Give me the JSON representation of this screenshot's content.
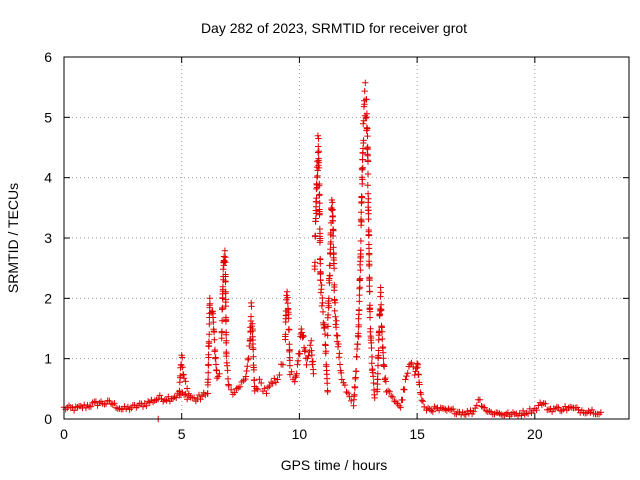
{
  "chart_data": {
    "type": "scatter",
    "title": "Day 282 of 2023, SRMTID for receiver grot",
    "xlabel": "GPS time / hours",
    "ylabel": "SRMTID / TECUs",
    "xlim": [
      0,
      24
    ],
    "ylim": [
      0,
      6
    ],
    "x_ticks": [
      0,
      5,
      10,
      15,
      20
    ],
    "y_ticks": [
      0,
      1,
      2,
      3,
      4,
      5,
      6
    ],
    "x_tick_labels": [
      "0",
      "5",
      "10",
      "15",
      "20"
    ],
    "y_tick_labels": [
      "0",
      "1",
      "2",
      "3",
      "4",
      "5",
      "6"
    ],
    "grid": true,
    "marker": "+",
    "series": [
      {
        "name": "SRMTID",
        "color": "#e00000",
        "segments": [
          {
            "x": [
              0.0,
              0.5,
              1.0,
              1.5,
              2.0,
              2.5,
              3.0,
              3.5,
              4.0,
              4.5,
              4.9,
              5.3,
              5.6,
              6.0
            ],
            "y": [
              0.18,
              0.17,
              0.22,
              0.27,
              0.26,
              0.16,
              0.2,
              0.26,
              0.34,
              0.35,
              0.4,
              0.38,
              0.32,
              0.4
            ]
          },
          {
            "x": [
              4.0
            ],
            "y": [
              0.0
            ]
          },
          {
            "x": [
              4.9,
              4.95,
              5.0,
              5.1,
              5.3
            ],
            "y": [
              0.45,
              0.8,
              1.0,
              0.65,
              0.42
            ]
          },
          {
            "x": [
              6.1,
              6.2,
              6.3,
              6.4,
              6.5,
              6.6
            ],
            "y": [
              0.4,
              1.97,
              1.85,
              1.2,
              0.7,
              0.75
            ]
          },
          {
            "x": [
              6.7,
              6.75,
              6.8,
              6.85,
              6.9,
              7.0
            ],
            "y": [
              1.4,
              2.2,
              2.85,
              2.6,
              1.0,
              0.55
            ]
          },
          {
            "x": [
              7.1,
              7.4,
              7.7,
              7.9,
              7.95,
              8.0,
              8.05,
              8.1,
              8.3,
              8.6,
              9.0,
              9.3
            ],
            "y": [
              0.45,
              0.52,
              0.65,
              1.2,
              1.8,
              1.6,
              0.9,
              0.45,
              0.6,
              0.45,
              0.65,
              0.9
            ]
          },
          {
            "x": [
              9.4,
              9.45,
              9.5,
              9.55,
              9.6,
              9.8,
              10.0,
              10.1,
              10.3,
              10.5,
              10.6
            ],
            "y": [
              1.3,
              1.95,
              2.1,
              1.6,
              0.8,
              0.6,
              1.1,
              1.5,
              0.9,
              1.25,
              0.75
            ]
          },
          {
            "x": [
              10.65,
              10.7,
              10.75,
              10.8,
              10.85,
              10.9,
              11.0,
              11.1,
              11.2
            ],
            "y": [
              2.6,
              3.3,
              4.1,
              4.55,
              3.7,
              2.3,
              1.8,
              1.3,
              0.45
            ]
          },
          {
            "x": [
              11.2,
              11.3,
              11.35,
              11.4,
              11.45,
              11.5,
              11.6,
              11.7,
              11.8,
              12.0,
              12.2
            ],
            "y": [
              1.5,
              2.6,
              3.3,
              3.6,
              2.7,
              1.9,
              1.4,
              1.0,
              0.7,
              0.45,
              0.3
            ]
          },
          {
            "x": [
              12.3,
              12.5,
              12.6,
              12.7,
              12.75,
              12.8,
              12.85,
              12.9,
              12.95,
              13.0,
              13.1,
              13.2
            ],
            "y": [
              0.2,
              1.4,
              2.8,
              4.6,
              5.05,
              5.35,
              5.1,
              4.3,
              3.0,
              1.6,
              0.8,
              0.35
            ]
          },
          {
            "x": [
              13.3,
              13.4,
              13.45,
              13.5,
              13.6,
              13.7,
              13.9,
              14.1,
              14.3,
              14.5,
              14.7,
              14.9,
              15.0,
              15.1,
              15.2,
              15.3
            ],
            "y": [
              0.4,
              1.6,
              2.05,
              1.5,
              0.8,
              0.5,
              0.35,
              0.3,
              0.2,
              0.6,
              0.9,
              0.75,
              1.0,
              0.55,
              0.3,
              0.2
            ]
          },
          {
            "x": [
              15.4,
              15.8,
              16.2,
              16.6,
              17.0,
              17.4,
              17.6,
              18.0,
              18.5,
              19.0,
              19.5,
              20.0,
              20.3,
              20.6,
              21.0,
              21.5,
              22.0,
              22.5,
              22.8
            ],
            "y": [
              0.17,
              0.16,
              0.14,
              0.13,
              0.1,
              0.12,
              0.33,
              0.12,
              0.09,
              0.07,
              0.1,
              0.16,
              0.27,
              0.16,
              0.17,
              0.18,
              0.14,
              0.13,
              0.11
            ]
          }
        ]
      }
    ]
  }
}
